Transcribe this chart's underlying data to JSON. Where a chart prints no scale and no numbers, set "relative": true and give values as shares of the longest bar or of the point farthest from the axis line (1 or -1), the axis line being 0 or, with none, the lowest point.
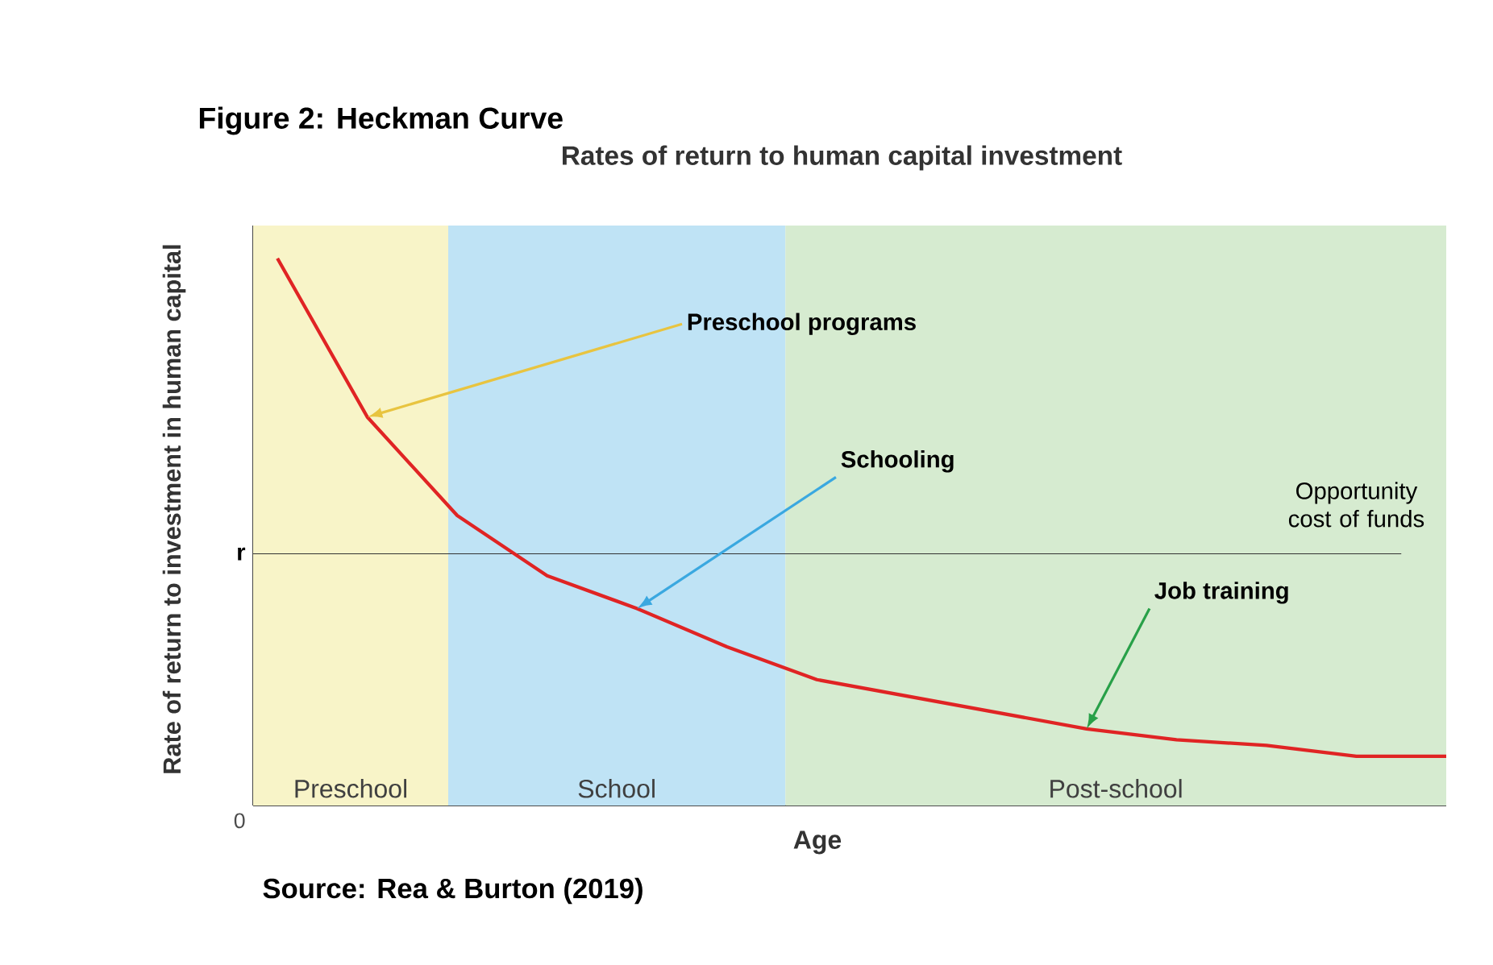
{
  "chart_data": {
    "type": "line",
    "title": "Figure 2: Heckman Curve",
    "subtitle": "Rates of return to human capital investment",
    "xlabel": "Age",
    "ylabel": "Rate of return to investment in human capital",
    "relative": true,
    "categories": [
      null,
      null,
      null,
      null,
      null,
      null,
      null,
      null,
      null,
      null,
      null,
      null,
      null,
      null
    ],
    "series": [
      {
        "color": "#e02424",
        "values": [
          1.0,
          0.71,
          0.53,
          0.42,
          0.36,
          0.29,
          0.23,
          0.2,
          0.17,
          0.14,
          0.12,
          0.11,
          0.09,
          0.09
        ]
      }
    ],
    "ref_lines": [
      {
        "axis": "y",
        "value": 0.46,
        "label": "r",
        "color": "#333333"
      }
    ],
    "annotations": [
      "Preschool programs",
      "Schooling",
      "Opportunity cost of funds",
      "Job training",
      "0",
      "Source: Rea & Burton (2019)",
      "Preschool",
      "School",
      "Post-school"
    ]
  }
}
